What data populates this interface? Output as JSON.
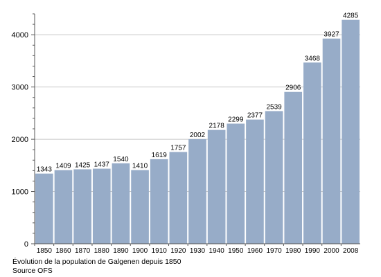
{
  "chart_data": {
    "type": "bar",
    "categories": [
      "1850",
      "1860",
      "1870",
      "1880",
      "1890",
      "1900",
      "1910",
      "1920",
      "1930",
      "1940",
      "1950",
      "1960",
      "1970",
      "1980",
      "1990",
      "2000",
      "2008"
    ],
    "values": [
      1343,
      1409,
      1425,
      1437,
      1540,
      1410,
      1619,
      1757,
      2002,
      2178,
      2299,
      2377,
      2539,
      2906,
      3468,
      3927,
      4285
    ],
    "title": "",
    "xlabel": "",
    "ylabel": "",
    "ylim": [
      0,
      4400
    ],
    "yticks": [
      0,
      1000,
      2000,
      3000,
      4000
    ],
    "grid": true,
    "bar_color": "#97acc8",
    "grid_color": "#c8c8c8"
  },
  "caption": {
    "line1": "Évolution de la population de Galgenen depuis 1850",
    "line2": "Source OFS"
  }
}
